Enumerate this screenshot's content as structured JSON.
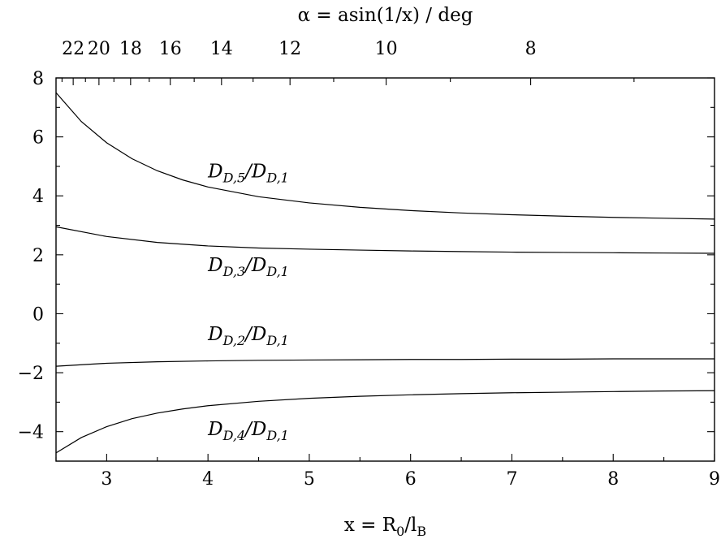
{
  "chart_data": {
    "type": "line",
    "xlabel": "x = R_0/l_B",
    "ylabel": "",
    "x2label": "α = asin(1/x) / deg",
    "xlim": [
      2.5,
      9
    ],
    "ylim": [
      -5,
      8
    ],
    "x_ticks": [
      3,
      4,
      5,
      6,
      7,
      8,
      9
    ],
    "y_ticks": [
      8,
      6,
      4,
      2,
      0,
      -2,
      -4
    ],
    "x_ticks_labels": [
      "3",
      "4",
      "5",
      "6",
      "7",
      "8",
      "9"
    ],
    "y_ticks_labels": [
      "8",
      "6",
      "4",
      "2",
      "0",
      "−2",
      "−4"
    ],
    "x2_ticks": [
      22,
      20,
      18,
      16,
      14,
      12,
      10,
      8
    ],
    "x2_ticks_labels": [
      "22",
      "20",
      "18",
      "16",
      "14",
      "12",
      "10",
      "8"
    ],
    "x2_minor_ticks": [
      23,
      21,
      19,
      17,
      15,
      13,
      11,
      9,
      7
    ],
    "grid": false,
    "series": [
      {
        "name": "D_{D,5}/D_{D,1}",
        "x": [
          2.5,
          2.75,
          3.0,
          3.25,
          3.5,
          3.75,
          4.0,
          4.5,
          5.0,
          5.5,
          6.0,
          6.5,
          7.0,
          7.5,
          8.0,
          8.5,
          9.0
        ],
        "y": [
          7.5,
          6.52,
          5.8,
          5.26,
          4.85,
          4.54,
          4.3,
          3.97,
          3.76,
          3.61,
          3.5,
          3.42,
          3.36,
          3.31,
          3.27,
          3.24,
          3.21
        ]
      },
      {
        "name": "D_{D,3}/D_{D,1}",
        "x": [
          2.5,
          3.0,
          3.5,
          4.0,
          4.5,
          5.0,
          5.5,
          6.0,
          6.5,
          7.0,
          7.5,
          8.0,
          8.5,
          9.0
        ],
        "y": [
          2.95,
          2.62,
          2.42,
          2.3,
          2.23,
          2.19,
          2.16,
          2.13,
          2.11,
          2.09,
          2.08,
          2.07,
          2.06,
          2.05
        ]
      },
      {
        "name": "D_{D,2}/D_{D,1}",
        "x": [
          2.5,
          3.0,
          3.5,
          4.0,
          4.5,
          5.0,
          5.5,
          6.0,
          6.5,
          7.0,
          7.5,
          8.0,
          8.5,
          9.0
        ],
        "y": [
          -1.78,
          -1.68,
          -1.63,
          -1.6,
          -1.58,
          -1.57,
          -1.56,
          -1.55,
          -1.55,
          -1.54,
          -1.54,
          -1.53,
          -1.53,
          -1.53
        ]
      },
      {
        "name": "D_{D,4}/D_{D,1}",
        "x": [
          2.5,
          2.75,
          3.0,
          3.25,
          3.5,
          3.75,
          4.0,
          4.5,
          5.0,
          5.5,
          6.0,
          6.5,
          7.0,
          7.5,
          8.0,
          8.5,
          9.0
        ],
        "y": [
          -4.72,
          -4.2,
          -3.83,
          -3.56,
          -3.37,
          -3.23,
          -3.12,
          -2.97,
          -2.87,
          -2.8,
          -2.75,
          -2.71,
          -2.68,
          -2.66,
          -2.64,
          -2.62,
          -2.61
        ]
      }
    ],
    "annotations": [
      {
        "text": "D_{D,5}/D_{D,1}",
        "x": 4.0,
        "y": 4.62
      },
      {
        "text": "D_{D,3}/D_{D,1}",
        "x": 4.0,
        "y": 1.45
      },
      {
        "text": "D_{D,2}/D_{D,1}",
        "x": 4.0,
        "y": -0.9
      },
      {
        "text": "D_{D,4}/D_{D,1}",
        "x": 4.0,
        "y": -4.12
      }
    ]
  }
}
